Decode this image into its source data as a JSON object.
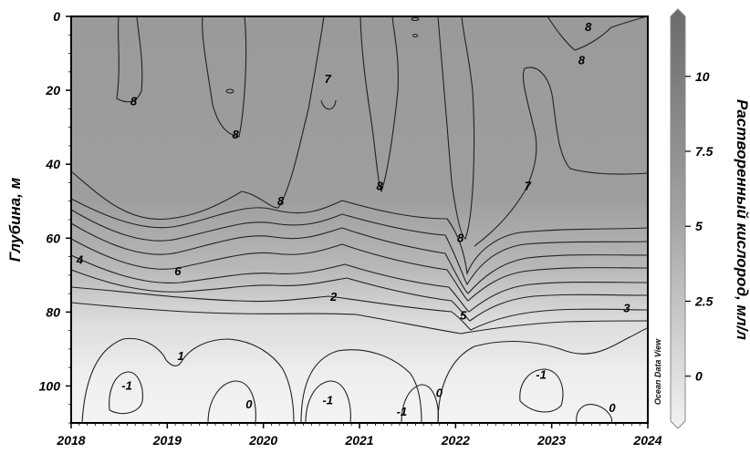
{
  "chart_data": {
    "type": "heatmap",
    "title": "",
    "xlabel": "",
    "ylabel": "Глубина, м",
    "colorbar_label": "Растворенный кислород, мл/л",
    "x_ticks": [
      "2018",
      "2019",
      "2020",
      "2021",
      "2022",
      "2023",
      "2024"
    ],
    "xlim": [
      2018,
      2024
    ],
    "y_ticks": [
      "0",
      "20",
      "40",
      "60",
      "80",
      "100"
    ],
    "ylim": [
      0,
      110
    ],
    "y_inverted": true,
    "colorbar_ticks": [
      "10",
      "7.5",
      "5",
      "2.5",
      "0"
    ],
    "colorbar_range": [
      -1.5,
      12
    ],
    "watermark": "Ocean Data View",
    "colormap": {
      "low": "#f3f3f3",
      "high": "#6b6b6b"
    },
    "contour_levels": [
      -1,
      0,
      1,
      2,
      3,
      4,
      5,
      6,
      7,
      8
    ],
    "contour_labels": [
      {
        "text": "8",
        "x": 2018.65,
        "depth": 24
      },
      {
        "text": "8",
        "x": 2019.71,
        "depth": 33
      },
      {
        "text": "7",
        "x": 2020.67,
        "depth": 18
      },
      {
        "text": "8",
        "x": 2021.21,
        "depth": 47
      },
      {
        "text": "8",
        "x": 2020.18,
        "depth": 51
      },
      {
        "text": "8",
        "x": 2022.05,
        "depth": 61
      },
      {
        "text": "7",
        "x": 2022.75,
        "depth": 47
      },
      {
        "text": "8",
        "x": 2023.38,
        "depth": 4
      },
      {
        "text": "8",
        "x": 2023.31,
        "depth": 13
      },
      {
        "text": "4",
        "x": 2018.09,
        "depth": 67
      },
      {
        "text": "6",
        "x": 2019.11,
        "depth": 70
      },
      {
        "text": "2",
        "x": 2020.73,
        "depth": 77
      },
      {
        "text": "5",
        "x": 2022.08,
        "depth": 82
      },
      {
        "text": "3",
        "x": 2023.78,
        "depth": 80
      },
      {
        "text": "1",
        "x": 2019.14,
        "depth": 93
      },
      {
        "text": "-1",
        "x": 2018.58,
        "depth": 101
      },
      {
        "text": "0",
        "x": 2019.85,
        "depth": 106
      },
      {
        "text": "-1",
        "x": 2020.67,
        "depth": 105
      },
      {
        "text": "-1",
        "x": 2021.44,
        "depth": 108
      },
      {
        "text": "0",
        "x": 2021.83,
        "depth": 103
      },
      {
        "text": "-1",
        "x": 2022.89,
        "depth": 98
      },
      {
        "text": "0",
        "x": 2023.63,
        "depth": 107
      }
    ]
  }
}
